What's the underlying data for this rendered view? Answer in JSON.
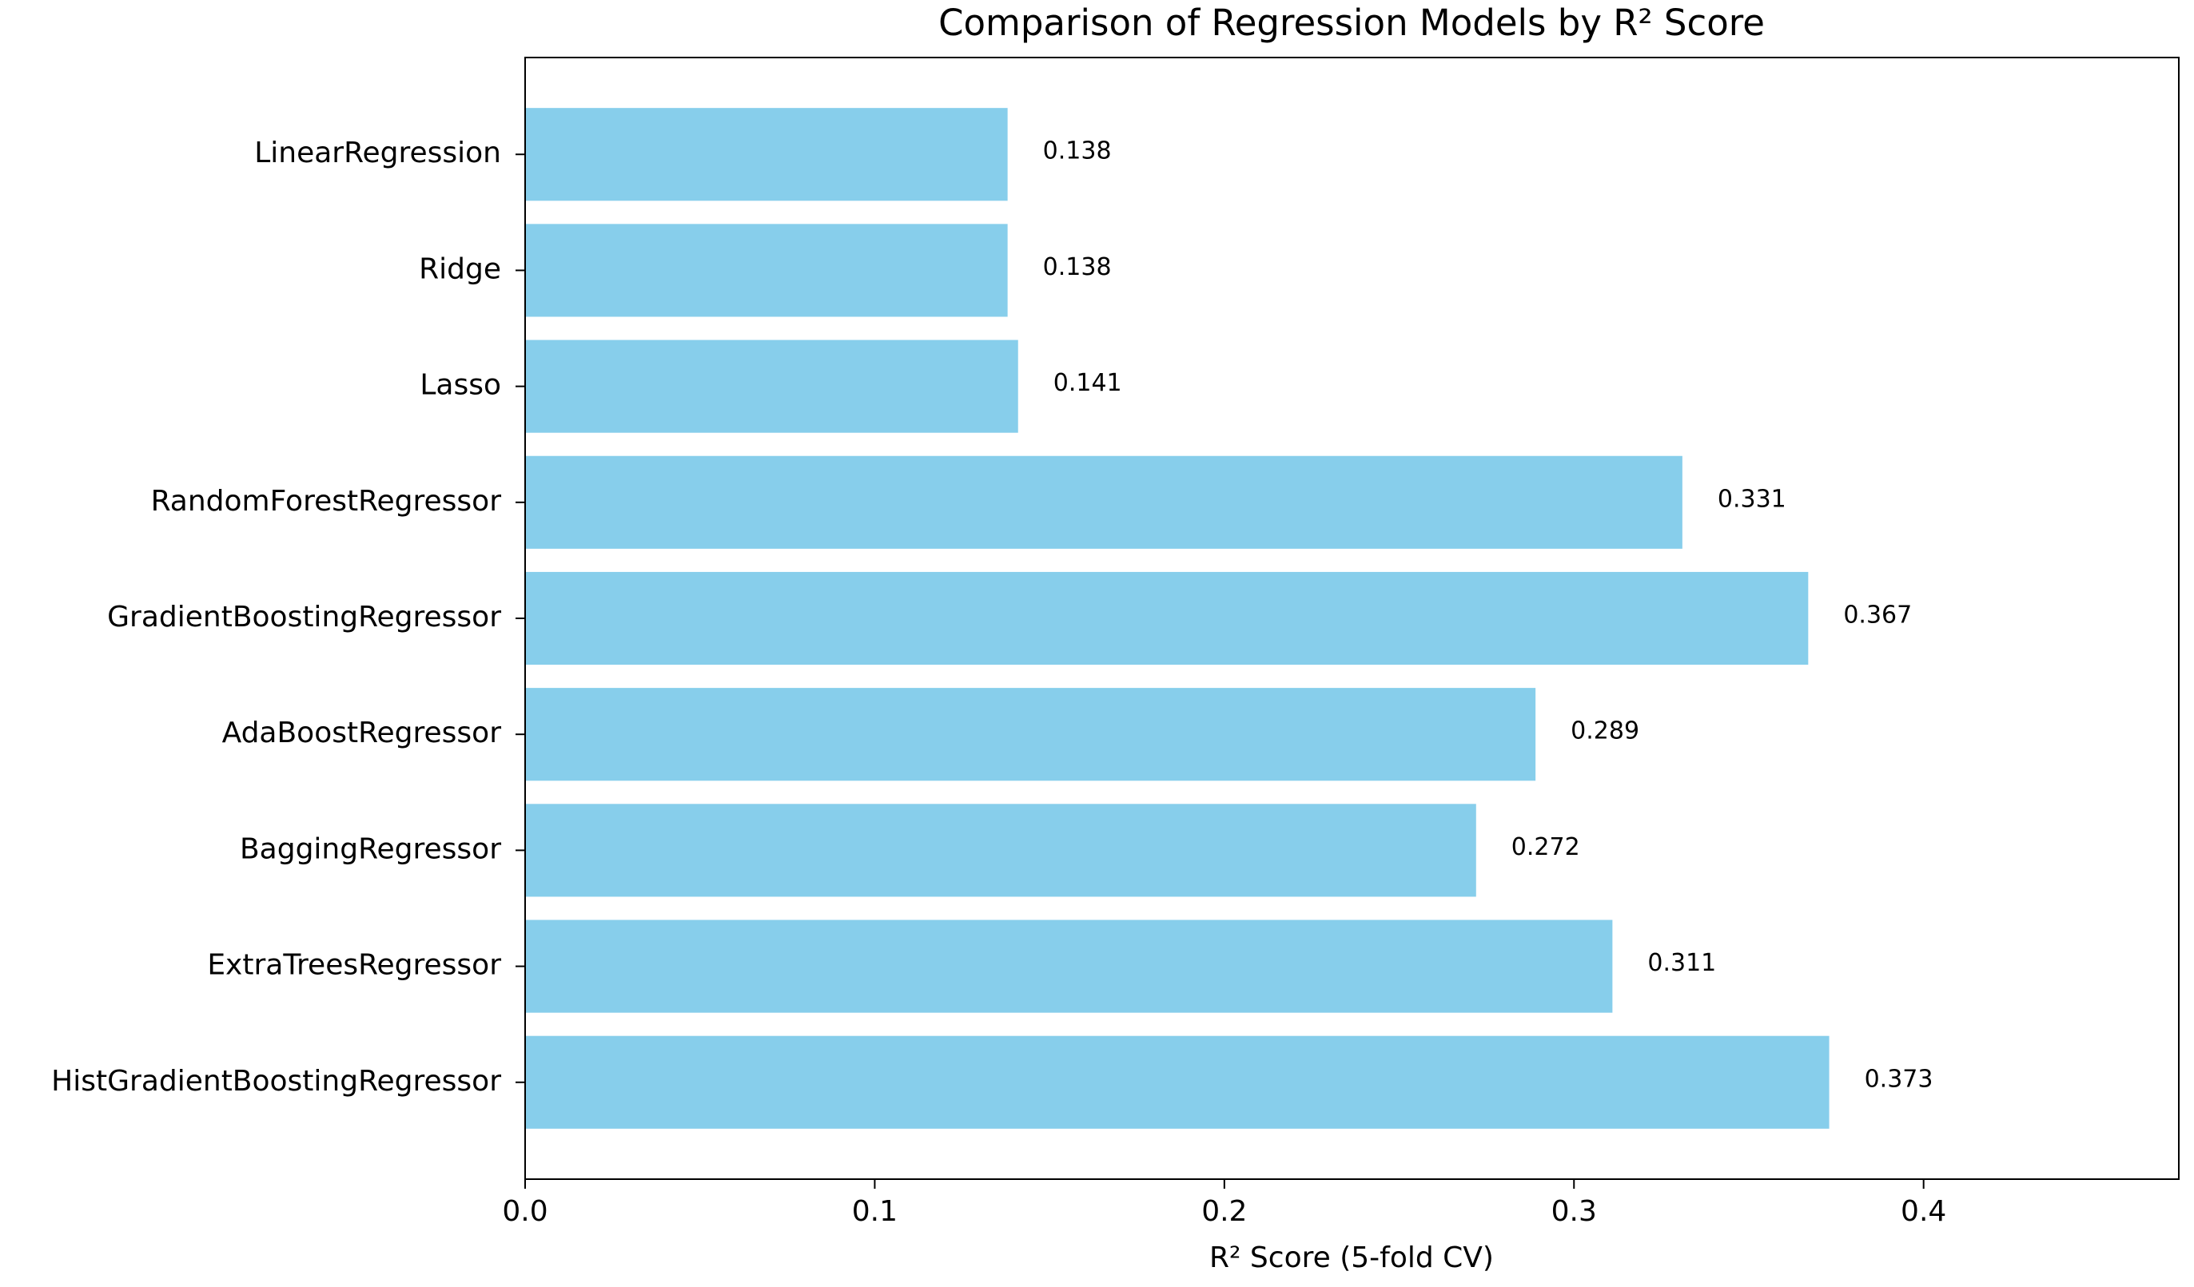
{
  "chart_data": {
    "type": "barh",
    "title": "Comparison of Regression Models by R² Score",
    "x_label": "R² Score (5-fold CV)",
    "categories": [
      "LinearRegression",
      "Ridge",
      "Lasso",
      "RandomForestRegressor",
      "GradientBoostingRegressor",
      "AdaBoostRegressor",
      "BaggingRegressor",
      "ExtraTreesRegressor",
      "HistGradientBoostingRegressor"
    ],
    "values": [
      0.138,
      0.138,
      0.141,
      0.331,
      0.367,
      0.289,
      0.272,
      0.311,
      0.373
    ],
    "color": "#87ceeb",
    "xlim": [
      0,
      0.473
    ],
    "xticks": [
      {
        "value": 0,
        "label": "0.0"
      },
      0.1,
      0.2,
      0.3,
      0.4
    ],
    "grid": false
  }
}
